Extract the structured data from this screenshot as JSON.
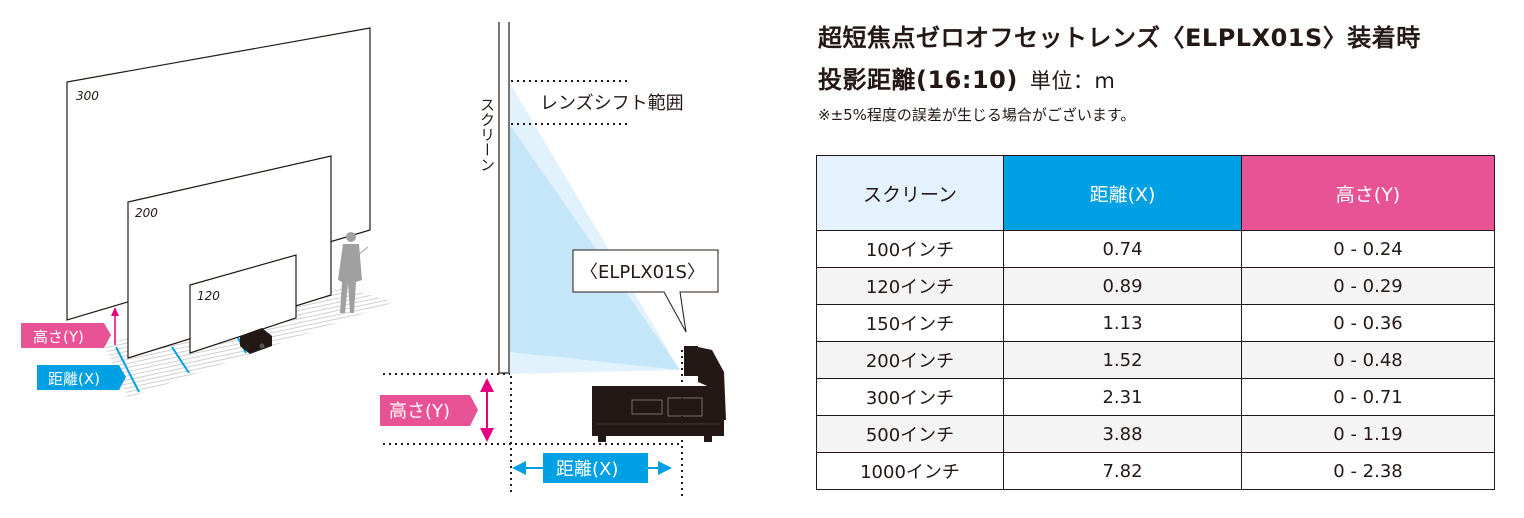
{
  "title_line1": "超短焦点ゼロオフセットレンズ〈ELPLX01S〉装着時",
  "title_line2": "投影距離(16:10)",
  "unit": "単位：m",
  "note": "※±5%程度の誤差が生じる場合がございます。",
  "colors": {
    "distance": "#00a0e4",
    "height": "#e85396",
    "screen_header": "#e3f2fc",
    "beam": "#c5e6f8"
  },
  "diagram": {
    "screen_labels": [
      "300",
      "200",
      "120"
    ],
    "height_label": "高さ(Y)",
    "distance_label": "距離(X)",
    "screen_text": "スクリーン",
    "lens_shift_label": "レンズシフト範囲",
    "lens_callout": "〈ELPLX01S〉"
  },
  "table": {
    "headers": [
      "スクリーン",
      "距離(X)",
      "高さ(Y)"
    ],
    "rows": [
      [
        "100インチ",
        "0.74",
        "0 - 0.24"
      ],
      [
        "120インチ",
        "0.89",
        "0 - 0.29"
      ],
      [
        "150インチ",
        "1.13",
        "0 - 0.36"
      ],
      [
        "200インチ",
        "1.52",
        "0 - 0.48"
      ],
      [
        "300インチ",
        "2.31",
        "0 - 0.71"
      ],
      [
        "500インチ",
        "3.88",
        "0 - 1.19"
      ],
      [
        "1000インチ",
        "7.82",
        "0 - 2.38"
      ]
    ]
  }
}
